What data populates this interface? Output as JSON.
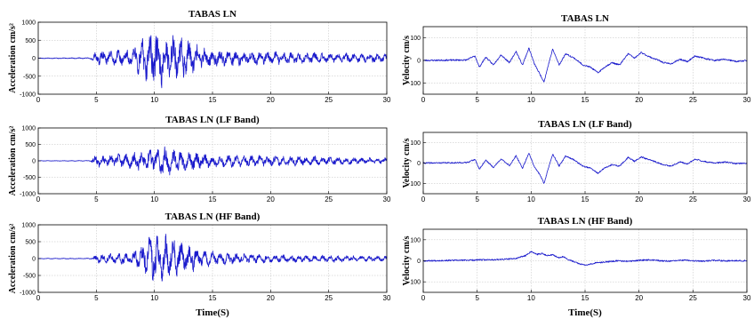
{
  "chart_data": [
    {
      "id": "acc_full",
      "type": "line",
      "title": "TABAS LN",
      "xlabel": "",
      "ylabel": "Acceleration cm/s²",
      "xlim": [
        0,
        30
      ],
      "ylim": [
        -1000,
        1000
      ],
      "xticks": [
        "0",
        "5",
        "10",
        "15",
        "20",
        "25",
        "30"
      ],
      "yticks": [
        "1000",
        "500",
        "0",
        "-500",
        "-1000"
      ],
      "grid": true,
      "color": "#1a1acc",
      "envelope": [
        [
          0,
          10
        ],
        [
          4.5,
          15
        ],
        [
          5,
          180
        ],
        [
          6,
          150
        ],
        [
          8,
          250
        ],
        [
          9,
          450
        ],
        [
          10,
          700
        ],
        [
          11,
          650
        ],
        [
          12,
          560
        ],
        [
          13,
          420
        ],
        [
          14,
          280
        ],
        [
          16,
          200
        ],
        [
          20,
          160
        ],
        [
          25,
          120
        ],
        [
          30,
          100
        ]
      ],
      "seed": 11
    },
    {
      "id": "vel_full",
      "type": "line",
      "title": "TABAS LN",
      "xlabel": "",
      "ylabel": "Velocity cm/s",
      "xlim": [
        0,
        30
      ],
      "ylim": [
        -150,
        150
      ],
      "xticks": [
        "0",
        "5",
        "10",
        "15",
        "20",
        "25",
        "30"
      ],
      "yticks": [
        "100",
        "0",
        "-100"
      ],
      "grid": true,
      "color": "#1a1acc",
      "x": [
        0,
        2,
        4,
        4.8,
        5.2,
        5.8,
        6.5,
        7.2,
        8,
        8.6,
        9.2,
        9.8,
        10.3,
        10.8,
        11.2,
        11.6,
        12,
        12.6,
        13.2,
        14,
        14.8,
        15.5,
        16.2,
        16.8,
        17.5,
        18.2,
        19,
        19.6,
        20.2,
        21,
        21.6,
        22.3,
        23,
        23.8,
        24.5,
        25.2,
        26,
        27,
        28,
        29,
        30
      ],
      "y": [
        0,
        1,
        2,
        20,
        -30,
        15,
        -20,
        25,
        -10,
        40,
        -20,
        55,
        -15,
        -60,
        -95,
        -20,
        50,
        -20,
        30,
        10,
        -20,
        -30,
        -55,
        -30,
        -10,
        -20,
        30,
        10,
        35,
        15,
        5,
        -10,
        -15,
        5,
        -5,
        20,
        10,
        0,
        5,
        -5,
        0
      ],
      "seed": 23
    },
    {
      "id": "acc_lf",
      "type": "line",
      "title": "TABAS LN (LF Band)",
      "xlabel": "",
      "ylabel": "Acceleration cm/s²",
      "xlim": [
        0,
        30
      ],
      "ylim": [
        -1000,
        1000
      ],
      "xticks": [
        "0",
        "5",
        "10",
        "15",
        "20",
        "25",
        "30"
      ],
      "yticks": [
        "1000",
        "500",
        "0",
        "-500",
        "-1000"
      ],
      "grid": true,
      "color": "#1a1acc",
      "envelope": [
        [
          0,
          5
        ],
        [
          4.5,
          10
        ],
        [
          5,
          180
        ],
        [
          6,
          160
        ],
        [
          8,
          220
        ],
        [
          10,
          330
        ],
        [
          11,
          400
        ],
        [
          12,
          300
        ],
        [
          14,
          220
        ],
        [
          16,
          180
        ],
        [
          20,
          150
        ],
        [
          25,
          110
        ],
        [
          30,
          80
        ]
      ],
      "seed": 37
    },
    {
      "id": "vel_lf",
      "type": "line",
      "title": "TABAS LN (LF Band)",
      "xlabel": "",
      "ylabel": "Velocity cm/s",
      "xlim": [
        0,
        30
      ],
      "ylim": [
        -150,
        150
      ],
      "xticks": [
        "0",
        "5",
        "10",
        "15",
        "20",
        "25",
        "30"
      ],
      "yticks": [
        "100",
        "0",
        "-100"
      ],
      "grid": true,
      "color": "#1a1acc",
      "x": [
        0,
        2,
        4,
        4.8,
        5.2,
        5.8,
        6.5,
        7.2,
        8,
        8.6,
        9.2,
        9.8,
        10.3,
        10.8,
        11.2,
        11.6,
        12,
        12.6,
        13.2,
        14,
        14.8,
        15.5,
        16.2,
        16.8,
        17.5,
        18.2,
        19,
        19.6,
        20.2,
        21,
        21.6,
        22.3,
        23,
        23.8,
        24.5,
        25.2,
        26,
        27,
        28,
        29,
        30
      ],
      "y": [
        0,
        1,
        2,
        18,
        -30,
        15,
        -22,
        20,
        -12,
        35,
        -25,
        50,
        -20,
        -55,
        -100,
        -25,
        45,
        -15,
        35,
        15,
        -15,
        -25,
        -50,
        -25,
        -8,
        -15,
        28,
        8,
        30,
        15,
        5,
        -10,
        -15,
        5,
        -5,
        20,
        8,
        0,
        5,
        -3,
        0
      ],
      "seed": 41
    },
    {
      "id": "acc_hf",
      "type": "line",
      "title": "TABAS LN (HF Band)",
      "xlabel": "Time(S)",
      "ylabel": "Acceleration cm/s²",
      "xlim": [
        0,
        30
      ],
      "ylim": [
        -1000,
        1000
      ],
      "xticks": [
        "0",
        "5",
        "10",
        "15",
        "20",
        "25",
        "30"
      ],
      "yticks": [
        "1000",
        "500",
        "0",
        "-500",
        "-1000"
      ],
      "grid": true,
      "color": "#1a1acc",
      "envelope": [
        [
          0,
          8
        ],
        [
          4.5,
          12
        ],
        [
          5,
          120
        ],
        [
          6,
          110
        ],
        [
          8,
          160
        ],
        [
          9,
          350
        ],
        [
          10,
          680
        ],
        [
          11,
          620
        ],
        [
          12,
          520
        ],
        [
          13,
          380
        ],
        [
          14,
          230
        ],
        [
          16,
          150
        ],
        [
          20,
          110
        ],
        [
          25,
          90
        ],
        [
          30,
          70
        ]
      ],
      "seed": 53
    },
    {
      "id": "vel_hf",
      "type": "line",
      "title": "TABAS LN (HF Band)",
      "xlabel": "Time(S)",
      "ylabel": "Velocity cm/s",
      "xlim": [
        0,
        30
      ],
      "ylim": [
        -150,
        150
      ],
      "xticks": [
        "0",
        "5",
        "10",
        "15",
        "20",
        "25",
        "30"
      ],
      "yticks": [
        "100",
        "0",
        "-100"
      ],
      "grid": true,
      "color": "#1a1acc",
      "x": [
        0,
        3,
        5,
        7,
        8.5,
        9.5,
        10,
        10.5,
        11,
        11.5,
        12,
        12.5,
        13,
        13.5,
        14,
        14.5,
        15,
        15.5,
        16,
        17,
        18,
        19,
        20,
        21,
        22,
        23,
        24,
        25,
        26,
        27,
        28,
        29,
        30
      ],
      "y": [
        0,
        2,
        4,
        6,
        10,
        25,
        45,
        30,
        35,
        25,
        30,
        15,
        20,
        5,
        -5,
        -15,
        -20,
        -15,
        -10,
        -5,
        0,
        -3,
        2,
        5,
        0,
        -2,
        3,
        0,
        -2,
        2,
        0,
        1,
        0
      ],
      "seed": 67
    }
  ]
}
